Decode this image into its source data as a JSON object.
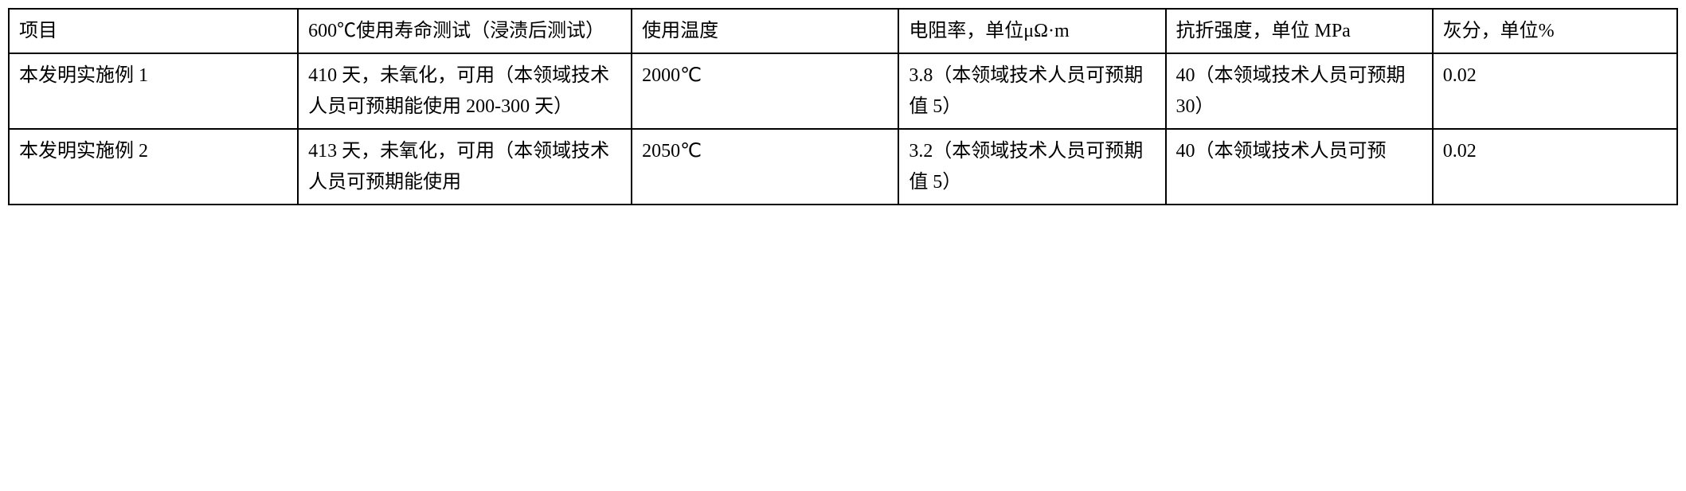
{
  "table": {
    "columns": [
      {
        "width_pct": 13,
        "align": "left"
      },
      {
        "width_pct": 15,
        "align": "left"
      },
      {
        "width_pct": 12,
        "align": "left"
      },
      {
        "width_pct": 12,
        "align": "left"
      },
      {
        "width_pct": 12,
        "align": "left"
      },
      {
        "width_pct": 11,
        "align": "left"
      }
    ],
    "border_color": "#000000",
    "border_width": 2,
    "font_family": "SimSun",
    "font_size_pt": 18,
    "text_color": "#000000",
    "background_color": "#ffffff",
    "line_height": 1.6,
    "header": {
      "c0": "项目",
      "c1": "600℃使用寿命测试（浸渍后测试）",
      "c2": "使用温度",
      "c3": "电阻率，单位μΩ·m",
      "c4": "抗折强度，单位 MPa",
      "c5": "灰分，单位%"
    },
    "rows": [
      {
        "c0": "本发明实施例 1",
        "c1": "410 天，未氧化，可用（本领域技术人员可预期能使用 200-300 天）",
        "c2": "2000℃",
        "c3": "3.8（本领域技术人员可预期值 5）",
        "c4": "40（本领域技术人员可预期 30）",
        "c5": "0.02"
      },
      {
        "c0": "本发明实施例 2",
        "c1": "413 天，未氧化，可用（本领域技术人员可预期能使用",
        "c2": "2050℃",
        "c3": "3.2（本领域技术人员可预期值 5）",
        "c4": "40（本领域技术人员可预",
        "c5": "0.02"
      }
    ]
  }
}
